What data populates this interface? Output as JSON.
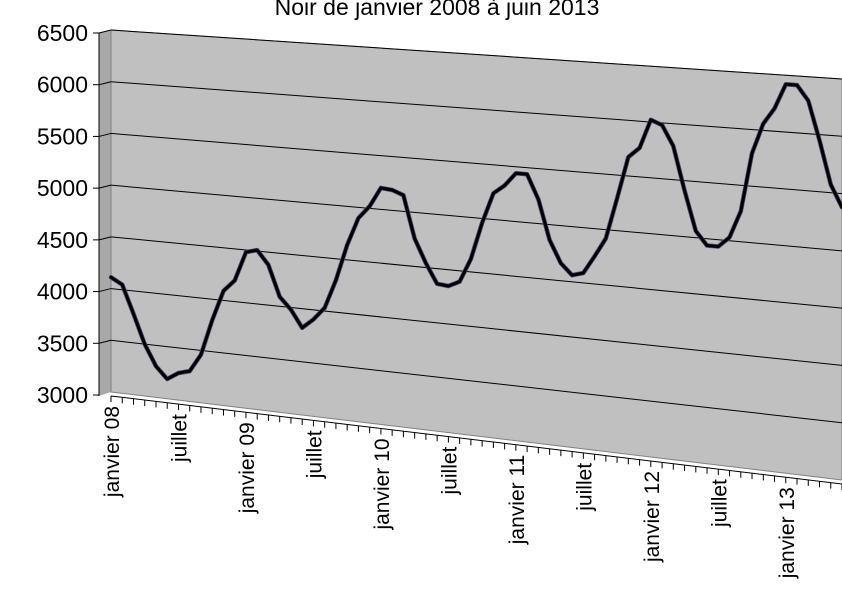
{
  "colors": {
    "plot_area": "#c0c0c0",
    "plot_side": "#a8a8a8",
    "gridline": "#000000",
    "series": "#000000",
    "background": "#ffffff"
  },
  "chart_data": {
    "type": "line",
    "title": "Noir de janvier 2008 à juin 2013",
    "xlabel": "",
    "ylabel": "",
    "ylim": [
      3000,
      6500
    ],
    "yticks": [
      3000,
      3500,
      4000,
      4500,
      5000,
      5500,
      6000,
      6500
    ],
    "grid": true,
    "legend": "none",
    "x_tick_labels": [
      "janvier 08",
      "juillet",
      "janvier 09",
      "juillet",
      "janvier 10",
      "juillet",
      "janvier 11",
      "juillet",
      "janvier 12",
      "juillet",
      "janvier 13"
    ],
    "x": [
      "2008-01",
      "2008-02",
      "2008-03",
      "2008-04",
      "2008-05",
      "2008-06",
      "2008-07",
      "2008-08",
      "2008-09",
      "2008-10",
      "2008-11",
      "2008-12",
      "2009-01",
      "2009-02",
      "2009-03",
      "2009-04",
      "2009-05",
      "2009-06",
      "2009-07",
      "2009-08",
      "2009-09",
      "2009-10",
      "2009-11",
      "2009-12",
      "2010-01",
      "2010-02",
      "2010-03",
      "2010-04",
      "2010-05",
      "2010-06",
      "2010-07",
      "2010-08",
      "2010-09",
      "2010-10",
      "2010-11",
      "2010-12",
      "2011-01",
      "2011-02",
      "2011-03",
      "2011-04",
      "2011-05",
      "2011-06",
      "2011-07",
      "2011-08",
      "2011-09",
      "2011-10",
      "2011-11",
      "2011-12",
      "2012-01",
      "2012-02",
      "2012-03",
      "2012-04",
      "2012-05",
      "2012-06",
      "2012-07",
      "2012-08",
      "2012-09",
      "2012-10",
      "2012-11",
      "2012-12",
      "2013-01",
      "2013-02",
      "2013-03",
      "2013-04",
      "2013-05",
      "2013-06"
    ],
    "series": [
      {
        "values": [
          4110,
          4050,
          3780,
          3500,
          3300,
          3190,
          3260,
          3290,
          3460,
          3800,
          4090,
          4200,
          4480,
          4510,
          4380,
          4090,
          3980,
          3820,
          3910,
          4030,
          4300,
          4640,
          4900,
          5020,
          5200,
          5190,
          5150,
          4760,
          4540,
          4360,
          4350,
          4400,
          4620,
          4960,
          5240,
          5320,
          5440,
          5440,
          5220,
          4860,
          4660,
          4560,
          4590,
          4750,
          4920,
          5290,
          5670,
          5760,
          6020,
          5980,
          5800,
          5410,
          5060,
          4940,
          4940,
          5030,
          5270,
          5790,
          6060,
          6200,
          6420,
          6420,
          6290,
          5950,
          5570,
          5380
        ]
      }
    ]
  }
}
